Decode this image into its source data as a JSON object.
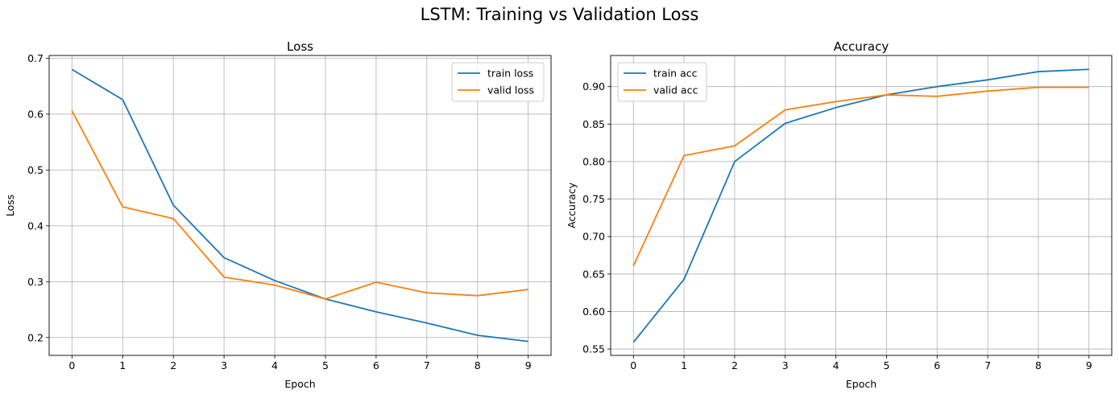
{
  "figure": {
    "suptitle": "LSTM: Training vs Validation Loss"
  },
  "colors": {
    "train": "#1f77b4",
    "valid": "#ff7f0e",
    "grid": "#b0b0b0"
  },
  "chart_data": [
    {
      "type": "line",
      "title": "Loss",
      "xlabel": "Epoch",
      "ylabel": "Loss",
      "x": [
        0,
        1,
        2,
        3,
        4,
        5,
        6,
        7,
        8,
        9
      ],
      "xticks": [
        "0",
        "1",
        "2",
        "3",
        "4",
        "5",
        "6",
        "7",
        "8",
        "9"
      ],
      "ylim": [
        0.168,
        0.705
      ],
      "yticks": [
        "0.2",
        "0.3",
        "0.4",
        "0.5",
        "0.6",
        "0.7"
      ],
      "grid": true,
      "legend": "upper right",
      "series": [
        {
          "name": "train loss",
          "color": "#1f77b4",
          "values": [
            0.68,
            0.626,
            0.437,
            0.343,
            0.302,
            0.269,
            0.246,
            0.226,
            0.204,
            0.193
          ]
        },
        {
          "name": "valid loss",
          "color": "#ff7f0e",
          "values": [
            0.606,
            0.434,
            0.413,
            0.308,
            0.294,
            0.269,
            0.299,
            0.28,
            0.275,
            0.286
          ]
        }
      ]
    },
    {
      "type": "line",
      "title": "Accuracy",
      "xlabel": "Epoch",
      "ylabel": "Accuracy",
      "x": [
        0,
        1,
        2,
        3,
        4,
        5,
        6,
        7,
        8,
        9
      ],
      "xticks": [
        "0",
        "1",
        "2",
        "3",
        "4",
        "5",
        "6",
        "7",
        "8",
        "9"
      ],
      "ylim": [
        0.5415,
        0.9415
      ],
      "yticks": [
        "0.55",
        "0.60",
        "0.65",
        "0.70",
        "0.75",
        "0.80",
        "0.85",
        "0.90"
      ],
      "grid": true,
      "legend": "upper left",
      "series": [
        {
          "name": "train acc",
          "color": "#1f77b4",
          "values": [
            0.559,
            0.643,
            0.8,
            0.851,
            0.872,
            0.889,
            0.9,
            0.909,
            0.92,
            0.923
          ]
        },
        {
          "name": "valid acc",
          "color": "#ff7f0e",
          "values": [
            0.661,
            0.808,
            0.821,
            0.869,
            0.88,
            0.889,
            0.887,
            0.894,
            0.899,
            0.899
          ]
        }
      ]
    }
  ]
}
